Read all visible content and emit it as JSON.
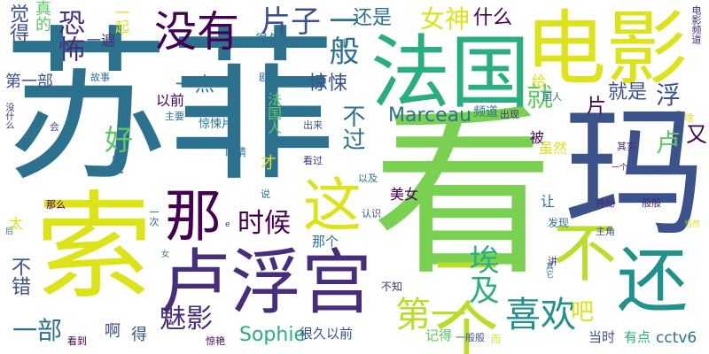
{
  "wordcloud": {
    "palette": {
      "yellow": "#dce319",
      "lime": "#b8de29",
      "green": "#7ad151",
      "teal": "#21918c",
      "blue": "#2c728e",
      "indigo": "#3b528b",
      "purple": "#472d7b",
      "deep": "#440154",
      "mint": "#5ec962",
      "sea": "#29af7f"
    },
    "words": {
      "sufei": "苏菲",
      "kan": "看",
      "suo": "索",
      "ma": "玛",
      "dianying": "电影",
      "faguo": "法国",
      "lufugong": "卢浮宫",
      "mei": "没有",
      "bu": "不",
      "huan": "还",
      "yige": "一个",
      "zhe": "这",
      "na": "那",
      "mogying": "魅影",
      "xihuan": "喜欢",
      "diyi": "第一",
      "aiji": "埃及",
      "shihou": "时候",
      "sophie": "Sophie",
      "marceau": "Marceau",
      "kongbu": "恐怖",
      "pianzi": "片子",
      "yiban": "一般",
      "haishi": "还是",
      "nvshen": "女神",
      "shenme": "什么",
      "yiqi": "一起",
      "cctv6": "cctv6",
      "juede": "觉得",
      "zhende": "真的",
      "diyibu": "第一部",
      "yibian": "一遍",
      "henjiu": "很久",
      "yidian": "一点",
      "jingsong": "惊悚",
      "jiu": "就",
      "pian": "片",
      "jiushi": "就是",
      "fu": "浮",
      "hao": "好",
      "lu": "卢",
      "you": "又",
      "shang": "上",
      "buguo": "不过",
      "yiqian": "以前",
      "zhuyao": "主要",
      "jingsongpian": "惊悚片",
      "faguoren": "法国人",
      "pindao": "频道",
      "chuxian": "出现",
      "guanren": "国人",
      "gei": "给",
      "bei": "被",
      "suiran": "虽然",
      "qishi": "其实",
      "dianyingpindao": "电影频道",
      "meinv": "美女",
      "rang": "让",
      "cai": "才",
      "yanjing": "眼睛",
      "kanguo": "看过",
      "yiji": "以及",
      "shuo": "说",
      "tai": "太",
      "name": "那么",
      "yici": "一次",
      "renshi": "认识",
      "nage": "那个",
      "faxian": "发现",
      "shenmi": "神秘",
      "banban": "般般",
      "zhujiao": "主角",
      "jiang": "讲",
      "qita": "其它",
      "nv": "女",
      "gushi": "故事",
      "juqing": "剧情",
      "yan": "演",
      "chulai": "出来",
      "hui": "会",
      "meishenme": "没什么",
      "bucuo": "不错",
      "yibu": "一部",
      "a": "啊",
      "de": "得",
      "kandao": "看到",
      "ba": "吧",
      "buzhi": "不知",
      "henjiuyiqian": "很久以前",
      "jide": "记得",
      "yibanban": "一般般",
      "er": "而",
      "dangshi": "当时",
      "youdian": "有点",
      "jingyan": "惊艳",
      "dangran": "当然",
      "e": "e",
      "geyi": "一个",
      "ge": "个",
      "she": "啥",
      "hou": "后",
      "ta": "它",
      "ran": "然"
    }
  }
}
